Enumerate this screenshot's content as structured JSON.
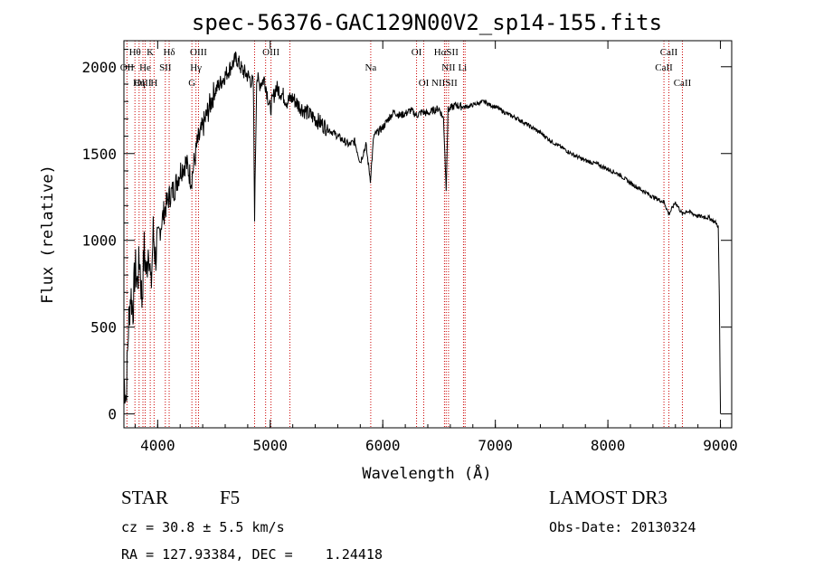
{
  "chart_data": {
    "type": "line",
    "title": "spec-56376-GAC129N00V2_sp14-155.fits",
    "xlabel": "Wavelength (Å)",
    "ylabel": "Flux (relative)",
    "xlim": [
      3700,
      9100
    ],
    "ylim": [
      -80,
      2150
    ],
    "x_ticks": [
      4000,
      5000,
      6000,
      7000,
      8000,
      9000
    ],
    "x_tick_labels": [
      "4000",
      "5000",
      "6000",
      "7000",
      "8000",
      "9000"
    ],
    "y_ticks": [
      0,
      500,
      1000,
      1500,
      2000
    ],
    "y_tick_labels": [
      "0",
      "500",
      "1000",
      "1500",
      "2000"
    ],
    "grid": false,
    "series": [
      {
        "name": "flux",
        "x": [
          3700,
          3720,
          3740,
          3760,
          3780,
          3800,
          3820,
          3840,
          3860,
          3880,
          3900,
          3920,
          3940,
          3960,
          3980,
          4000,
          4050,
          4100,
          4150,
          4200,
          4250,
          4300,
          4350,
          4400,
          4450,
          4500,
          4550,
          4600,
          4650,
          4700,
          4750,
          4800,
          4850,
          4861,
          4880,
          4900,
          4950,
          5000,
          5050,
          5100,
          5150,
          5200,
          5250,
          5300,
          5400,
          5500,
          5600,
          5700,
          5750,
          5800,
          5850,
          5890,
          5920,
          5950,
          6000,
          6050,
          6100,
          6150,
          6200,
          6250,
          6300,
          6350,
          6400,
          6450,
          6500,
          6540,
          6563,
          6580,
          6600,
          6650,
          6700,
          6750,
          6800,
          6850,
          6900,
          6950,
          7000,
          7100,
          7200,
          7300,
          7400,
          7500,
          7600,
          7700,
          7800,
          7900,
          8000,
          8100,
          8200,
          8300,
          8400,
          8500,
          8542,
          8600,
          8662,
          8700,
          8800,
          8900,
          8960,
          8980,
          8990,
          9000
        ],
        "y": [
          200,
          100,
          500,
          700,
          600,
          850,
          750,
          900,
          650,
          950,
          800,
          1000,
          700,
          1050,
          900,
          1000,
          1150,
          1250,
          1300,
          1400,
          1450,
          1350,
          1550,
          1650,
          1750,
          1850,
          1900,
          1950,
          2000,
          2050,
          1980,
          1950,
          1900,
          1150,
          1950,
          1900,
          1930,
          1750,
          1880,
          1850,
          1800,
          1820,
          1780,
          1750,
          1700,
          1650,
          1600,
          1550,
          1570,
          1450,
          1550,
          1350,
          1600,
          1620,
          1650,
          1700,
          1740,
          1720,
          1730,
          1750,
          1720,
          1740,
          1730,
          1750,
          1760,
          1700,
          1300,
          1750,
          1760,
          1780,
          1770,
          1770,
          1780,
          1790,
          1800,
          1780,
          1770,
          1730,
          1700,
          1660,
          1620,
          1570,
          1530,
          1490,
          1460,
          1440,
          1410,
          1380,
          1330,
          1290,
          1250,
          1220,
          1150,
          1220,
          1150,
          1170,
          1140,
          1130,
          1100,
          1080,
          680,
          0
        ]
      }
    ],
    "line_markers": [
      {
        "label": "Hδ",
        "x": 4102,
        "row": 0
      },
      {
        "label": "K",
        "x": 3934,
        "row": 0
      },
      {
        "label": "Hθ",
        "x": 3798,
        "row": 0
      },
      {
        "label": "OIII",
        "x": 4363,
        "row": 0
      },
      {
        "label": "OIII",
        "x": 5007,
        "row": 0
      },
      {
        "label": "OI",
        "x": 6300,
        "row": 0
      },
      {
        "label": "HαSII",
        "x": 6563,
        "row": 0
      },
      {
        "label": "CaII",
        "x": 8542,
        "row": 0
      },
      {
        "label": "OII",
        "x": 3727,
        "row": 1
      },
      {
        "label": "He",
        "x": 3889,
        "row": 1
      },
      {
        "label": "SII",
        "x": 4068,
        "row": 1
      },
      {
        "label": "Hγ",
        "x": 4340,
        "row": 1
      },
      {
        "label": "Na",
        "x": 5893,
        "row": 1
      },
      {
        "label": "NII",
        "x": 6584,
        "row": 1
      },
      {
        "label": "Li",
        "x": 6708,
        "row": 1
      },
      {
        "label": "CaII",
        "x": 8498,
        "row": 1
      },
      {
        "label": "OIII",
        "x": 3869,
        "row": 2
      },
      {
        "label": "Hη",
        "x": 3835,
        "row": 2
      },
      {
        "label": "H",
        "x": 3968,
        "row": 2
      },
      {
        "label": "G",
        "x": 4304,
        "row": 2
      },
      {
        "label": "OI",
        "x": 6364,
        "row": 2
      },
      {
        "label": "NIISII",
        "x": 6548,
        "row": 2
      },
      {
        "label": "CaII",
        "x": 8662,
        "row": 2
      }
    ],
    "vlines_x": [
      3727,
      3798,
      3835,
      3869,
      3889,
      3934,
      3968,
      4068,
      4102,
      4304,
      4340,
      4363,
      4861,
      4959,
      5007,
      5175,
      5893,
      6300,
      6364,
      6548,
      6563,
      6584,
      6717,
      6731,
      8498,
      8542,
      8662
    ]
  },
  "info": {
    "object_type": "STAR",
    "subclass": "F5",
    "survey": "LAMOST DR3",
    "cz": "cz = 30.8 ± 5.5 km/s",
    "obs_date": "Obs-Date: 20130324",
    "coords": "RA = 127.93384, DEC =    1.24418"
  },
  "colors": {
    "axis": "#000000",
    "line": "#000000",
    "marker": "#cc0000"
  }
}
